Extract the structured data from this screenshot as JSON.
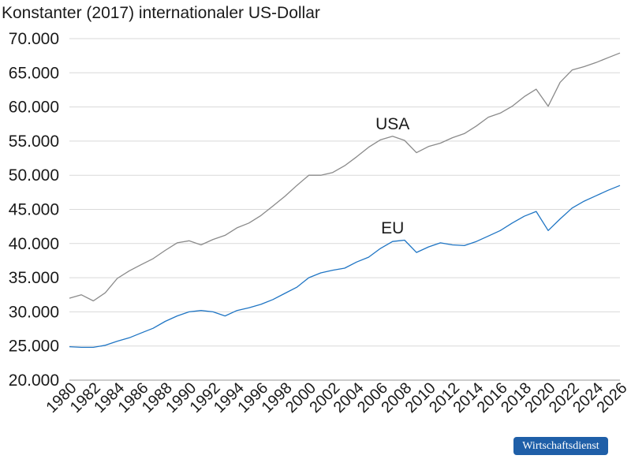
{
  "chart_data": {
    "type": "line",
    "title": "Konstanter (2017) internationaler US-Dollar",
    "xlabel": "",
    "ylabel": "",
    "ylim": [
      20000,
      70000
    ],
    "xlim": [
      1980,
      2026
    ],
    "grid": true,
    "y_ticks": [
      20000,
      25000,
      30000,
      35000,
      40000,
      45000,
      50000,
      55000,
      60000,
      65000,
      70000
    ],
    "y_tick_labels": [
      "20.000",
      "25.000",
      "30.000",
      "35.000",
      "40.000",
      "45.000",
      "50.000",
      "55.000",
      "60.000",
      "65.000",
      "70.000"
    ],
    "x_tick_labels": [
      "1980",
      "1982",
      "1984",
      "1986",
      "1988",
      "1990",
      "1992",
      "1994",
      "1996",
      "1998",
      "2000",
      "2002",
      "2004",
      "2006",
      "2008",
      "2010",
      "2012",
      "2014",
      "2016",
      "2018",
      "2020",
      "2022",
      "2024",
      "2026"
    ],
    "x": [
      1980,
      1981,
      1982,
      1983,
      1984,
      1985,
      1986,
      1987,
      1988,
      1989,
      1990,
      1991,
      1992,
      1993,
      1994,
      1995,
      1996,
      1997,
      1998,
      1999,
      2000,
      2001,
      2002,
      2003,
      2004,
      2005,
      2006,
      2007,
      2008,
      2009,
      2010,
      2011,
      2012,
      2013,
      2014,
      2015,
      2016,
      2017,
      2018,
      2019,
      2020,
      2021,
      2022,
      2023,
      2024,
      2025,
      2026
    ],
    "series": [
      {
        "name": "USA",
        "color": "#8a8a8a",
        "values": [
          32000,
          32500,
          31600,
          32800,
          34900,
          36000,
          36900,
          37800,
          39000,
          40100,
          40400,
          39800,
          40600,
          41200,
          42300,
          43000,
          44100,
          45500,
          46900,
          48500,
          50000,
          50000,
          50400,
          51400,
          52700,
          54100,
          55200,
          55700,
          55100,
          53300,
          54200,
          54700,
          55500,
          56100,
          57200,
          58500,
          59100,
          60100,
          61500,
          62600,
          60100,
          63600,
          65400,
          65900,
          66500,
          67200,
          67900
        ],
        "label_at": [
          2007,
          56700
        ]
      },
      {
        "name": "EU",
        "color": "#1f75c4",
        "values": [
          24900,
          24800,
          24800,
          25100,
          25700,
          26200,
          26900,
          27600,
          28600,
          29400,
          30000,
          30200,
          30000,
          29400,
          30200,
          30600,
          31100,
          31800,
          32700,
          33600,
          35000,
          35700,
          36100,
          36400,
          37300,
          38000,
          39300,
          40300,
          40500,
          38700,
          39500,
          40100,
          39800,
          39700,
          40300,
          41100,
          41900,
          43000,
          44000,
          44700,
          41900,
          43600,
          45200,
          46200,
          47000,
          47800,
          48500
        ],
        "label_at": [
          2007,
          41500
        ]
      }
    ]
  },
  "brand": {
    "label": "Wirtschaftsdienst",
    "color": "#1f5fa8"
  }
}
